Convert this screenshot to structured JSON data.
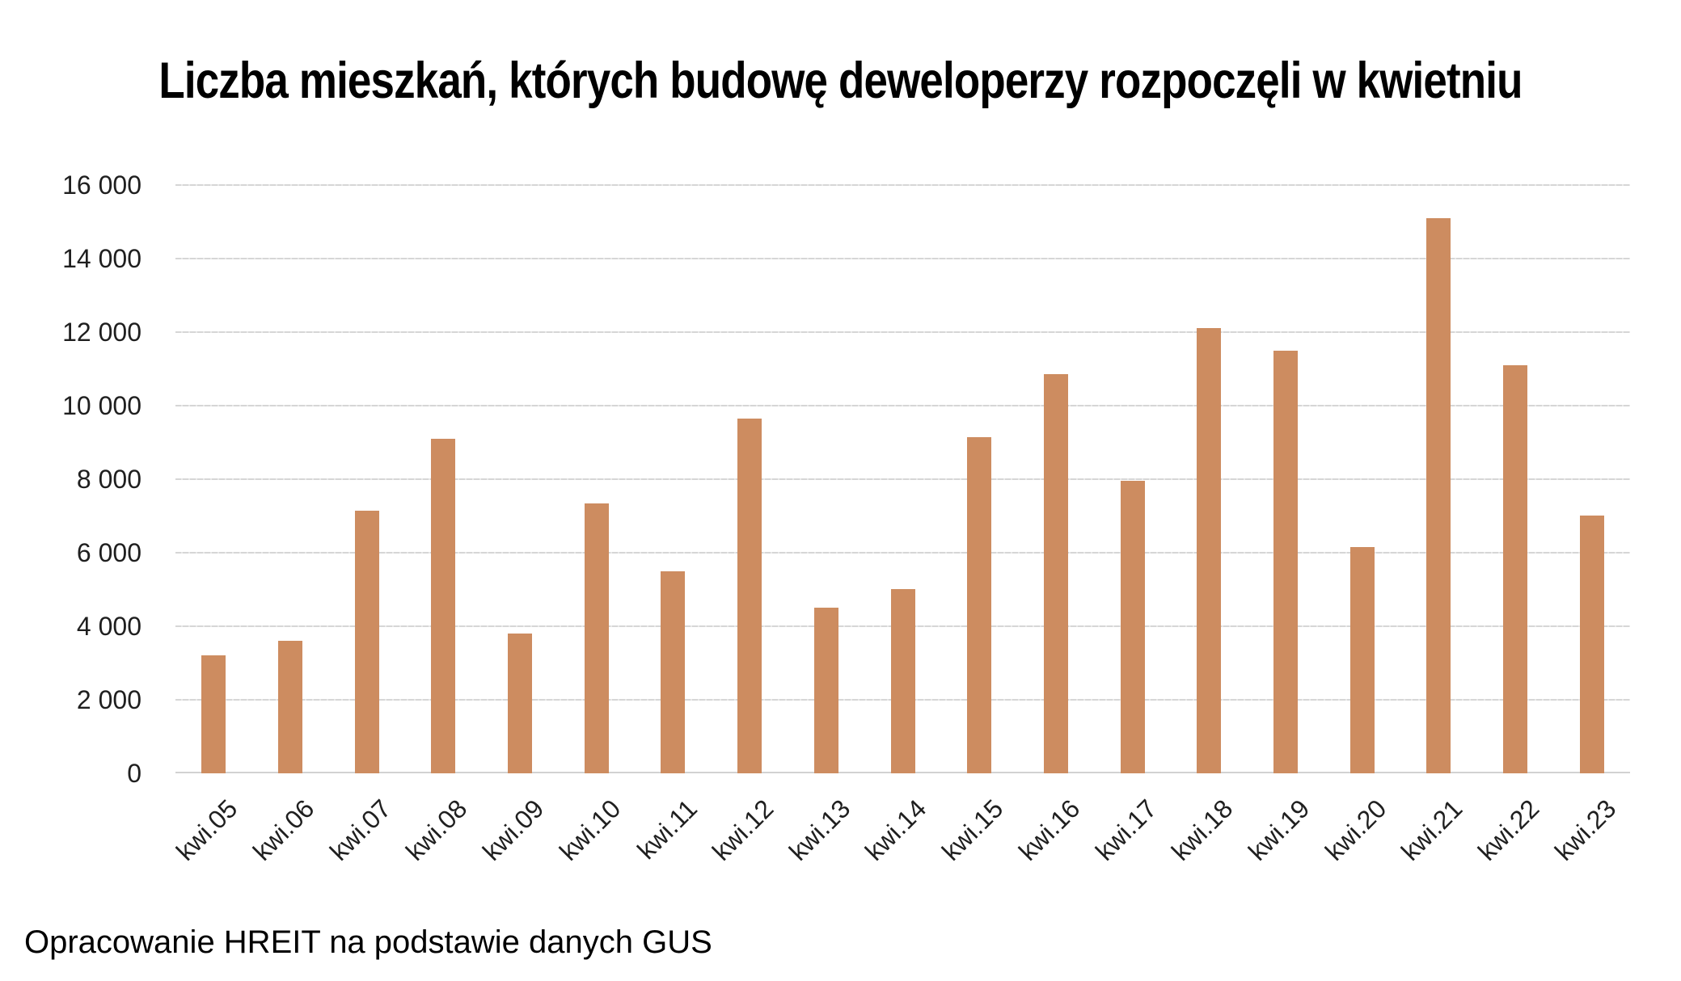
{
  "chart_data": {
    "type": "bar",
    "title": "Liczba mieszkań, których budowę deweloperzy rozpoczęli w kwietniu",
    "source_note": "Opracowanie HREIT na podstawie danych GUS",
    "categories": [
      "kwi.05",
      "kwi.06",
      "kwi.07",
      "kwi.08",
      "kwi.09",
      "kwi.10",
      "kwi.11",
      "kwi.12",
      "kwi.13",
      "kwi.14",
      "kwi.15",
      "kwi.16",
      "kwi.17",
      "kwi.18",
      "kwi.19",
      "kwi.20",
      "kwi.21",
      "kwi.22",
      "kwi.23"
    ],
    "values": [
      3200,
      3600,
      7150,
      9100,
      3800,
      7350,
      5500,
      9650,
      4500,
      5000,
      9150,
      10850,
      7950,
      12100,
      11500,
      6150,
      15100,
      11100,
      7000
    ],
    "xlabel": "",
    "ylabel": "",
    "ylim": [
      0,
      16000
    ],
    "ytick_step": 2000,
    "yticks": [
      0,
      2000,
      4000,
      6000,
      8000,
      10000,
      12000,
      14000,
      16000
    ],
    "ytick_labels": [
      "0",
      "2 000",
      "4 000",
      "6 000",
      "8 000",
      "10 000",
      "12 000",
      "14 000",
      "16 000"
    ],
    "grid": true,
    "legend": "none",
    "bar_color": "#CD8C60",
    "gridline_color": "#D9D9D9",
    "text_color": "#1F1F1F"
  }
}
